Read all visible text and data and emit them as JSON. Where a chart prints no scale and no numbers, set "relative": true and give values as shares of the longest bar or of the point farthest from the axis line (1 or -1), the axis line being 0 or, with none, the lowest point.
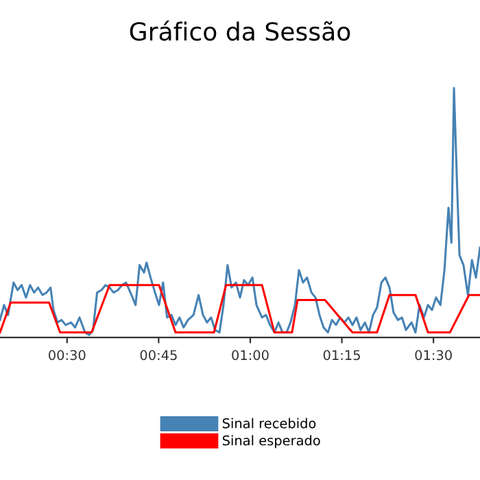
{
  "chart_data": {
    "type": "line",
    "title": "Gráfico da Sessão",
    "relative": true,
    "xlim": [
      0.317,
      1.627
    ],
    "xticks": [
      {
        "value": 0.5,
        "label": "00:30"
      },
      {
        "value": 0.75,
        "label": "00:45"
      },
      {
        "value": 1.0,
        "label": "01:00"
      },
      {
        "value": 1.25,
        "label": "01:15"
      },
      {
        "value": 1.5,
        "label": "01:30"
      }
    ],
    "tick_labels": "x",
    "grid": false,
    "legend": "bottom",
    "marker": "none",
    "line_style": "solid",
    "series": [
      {
        "name": "Sinal recebido",
        "color": "#4682b4",
        "x": [
          0.317,
          0.328,
          0.339,
          0.354,
          0.365,
          0.376,
          0.388,
          0.399,
          0.41,
          0.421,
          0.433,
          0.444,
          0.455,
          0.463,
          0.474,
          0.485,
          0.496,
          0.511,
          0.522,
          0.534,
          0.549,
          0.56,
          0.571,
          0.582,
          0.594,
          0.605,
          0.616,
          0.627,
          0.639,
          0.65,
          0.661,
          0.676,
          0.687,
          0.698,
          0.71,
          0.717,
          0.728,
          0.74,
          0.751,
          0.762,
          0.773,
          0.785,
          0.796,
          0.807,
          0.818,
          0.83,
          0.845,
          0.859,
          0.871,
          0.882,
          0.893,
          0.904,
          0.916,
          0.927,
          0.938,
          0.949,
          0.961,
          0.972,
          0.983,
          0.994,
          1.006,
          1.017,
          1.032,
          1.043,
          1.054,
          1.066,
          1.077,
          1.088,
          1.099,
          1.11,
          1.122,
          1.133,
          1.144,
          1.155,
          1.167,
          1.178,
          1.189,
          1.2,
          1.212,
          1.223,
          1.234,
          1.245,
          1.257,
          1.268,
          1.279,
          1.29,
          1.301,
          1.313,
          1.324,
          1.335,
          1.346,
          1.358,
          1.369,
          1.38,
          1.391,
          1.403,
          1.414,
          1.425,
          1.44,
          1.451,
          1.462,
          1.474,
          1.485,
          1.496,
          1.507,
          1.519,
          1.53,
          1.541,
          1.549,
          1.556,
          1.564,
          1.571,
          1.582,
          1.594,
          1.605,
          1.616,
          1.627
        ],
        "values": [
          0.07,
          0.13,
          0.09,
          0.22,
          0.19,
          0.21,
          0.16,
          0.21,
          0.18,
          0.2,
          0.17,
          0.18,
          0.2,
          0.11,
          0.06,
          0.07,
          0.05,
          0.06,
          0.04,
          0.08,
          0.02,
          0.01,
          0.03,
          0.18,
          0.19,
          0.21,
          0.2,
          0.18,
          0.19,
          0.21,
          0.22,
          0.17,
          0.13,
          0.29,
          0.26,
          0.3,
          0.24,
          0.18,
          0.13,
          0.22,
          0.08,
          0.09,
          0.05,
          0.08,
          0.04,
          0.07,
          0.09,
          0.17,
          0.09,
          0.06,
          0.08,
          0.03,
          0.02,
          0.13,
          0.29,
          0.2,
          0.22,
          0.16,
          0.23,
          0.21,
          0.24,
          0.13,
          0.08,
          0.09,
          0.05,
          0.02,
          0.06,
          0.02,
          0.02,
          0.06,
          0.13,
          0.27,
          0.22,
          0.24,
          0.18,
          0.16,
          0.09,
          0.04,
          0.02,
          0.07,
          0.05,
          0.08,
          0.06,
          0.08,
          0.05,
          0.08,
          0.03,
          0.06,
          0.02,
          0.09,
          0.12,
          0.22,
          0.24,
          0.2,
          0.1,
          0.07,
          0.08,
          0.03,
          0.06,
          0.02,
          0.13,
          0.08,
          0.13,
          0.11,
          0.16,
          0.13,
          0.27,
          0.52,
          0.38,
          1.0,
          0.63,
          0.33,
          0.29,
          0.17,
          0.31,
          0.24,
          0.36
        ]
      },
      {
        "name": "Sinal esperado",
        "color": "#ff0000",
        "x": [
          0.317,
          0.346,
          0.451,
          0.481,
          0.567,
          0.616,
          0.751,
          0.796,
          0.901,
          0.934,
          1.032,
          1.066,
          1.114,
          1.129,
          1.204,
          1.279,
          1.346,
          1.38,
          1.451,
          1.485,
          1.545,
          1.597,
          1.627
        ],
        "values": [
          0.02,
          0.14,
          0.14,
          0.02,
          0.02,
          0.21,
          0.21,
          0.02,
          0.02,
          0.21,
          0.21,
          0.02,
          0.02,
          0.15,
          0.15,
          0.02,
          0.02,
          0.17,
          0.17,
          0.02,
          0.02,
          0.17,
          0.17
        ]
      }
    ]
  }
}
